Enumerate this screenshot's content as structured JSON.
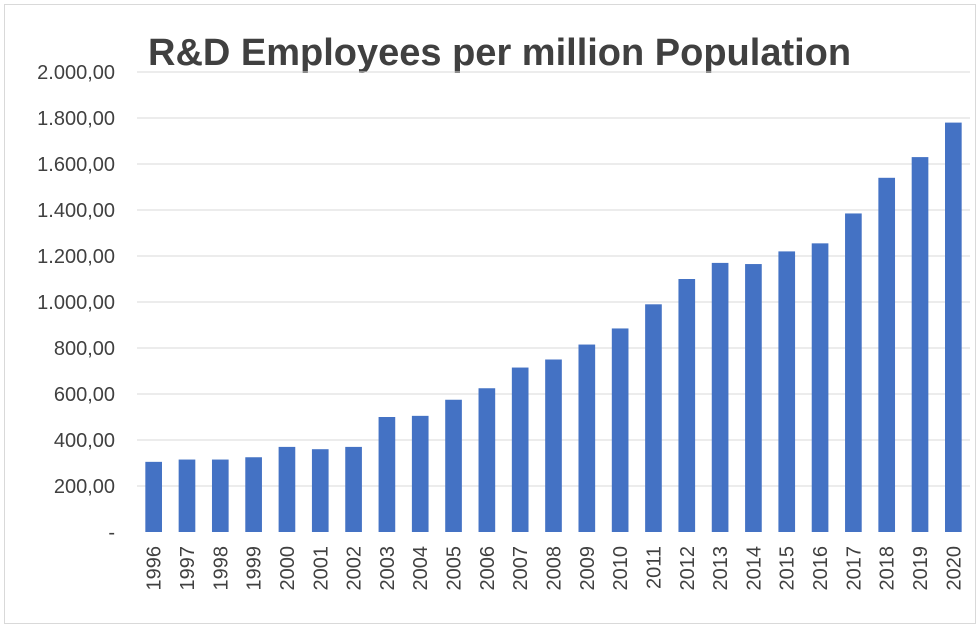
{
  "chart_data": {
    "type": "bar",
    "title": "R&D Employees per million Population",
    "xlabel": "",
    "ylabel": "",
    "categories": [
      "1996",
      "1997",
      "1998",
      "1999",
      "2000",
      "2001",
      "2002",
      "2003",
      "2004",
      "2005",
      "2006",
      "2007",
      "2008",
      "2009",
      "2010",
      "2011",
      "2012",
      "2013",
      "2014",
      "2015",
      "2016",
      "2017",
      "2018",
      "2019",
      "2020"
    ],
    "values": [
      305,
      315,
      315,
      325,
      370,
      360,
      370,
      500,
      505,
      575,
      625,
      715,
      750,
      815,
      885,
      990,
      1100,
      1170,
      1165,
      1220,
      1255,
      1385,
      1540,
      1630,
      1780
    ],
    "ylim": [
      0,
      2000
    ],
    "yticks": [
      0,
      200,
      400,
      600,
      800,
      1000,
      1200,
      1400,
      1600,
      1800,
      2000
    ],
    "ytick_labels": [
      "-",
      "200,00",
      "400,00",
      "600,00",
      "800,00",
      "1.000,00",
      "1.200,00",
      "1.400,00",
      "1.600,00",
      "1.800,00",
      "2.000,00"
    ],
    "grid": true,
    "bar_color": "#4472c4",
    "grid_color": "#d9d9d9",
    "text_color": "#404040"
  }
}
